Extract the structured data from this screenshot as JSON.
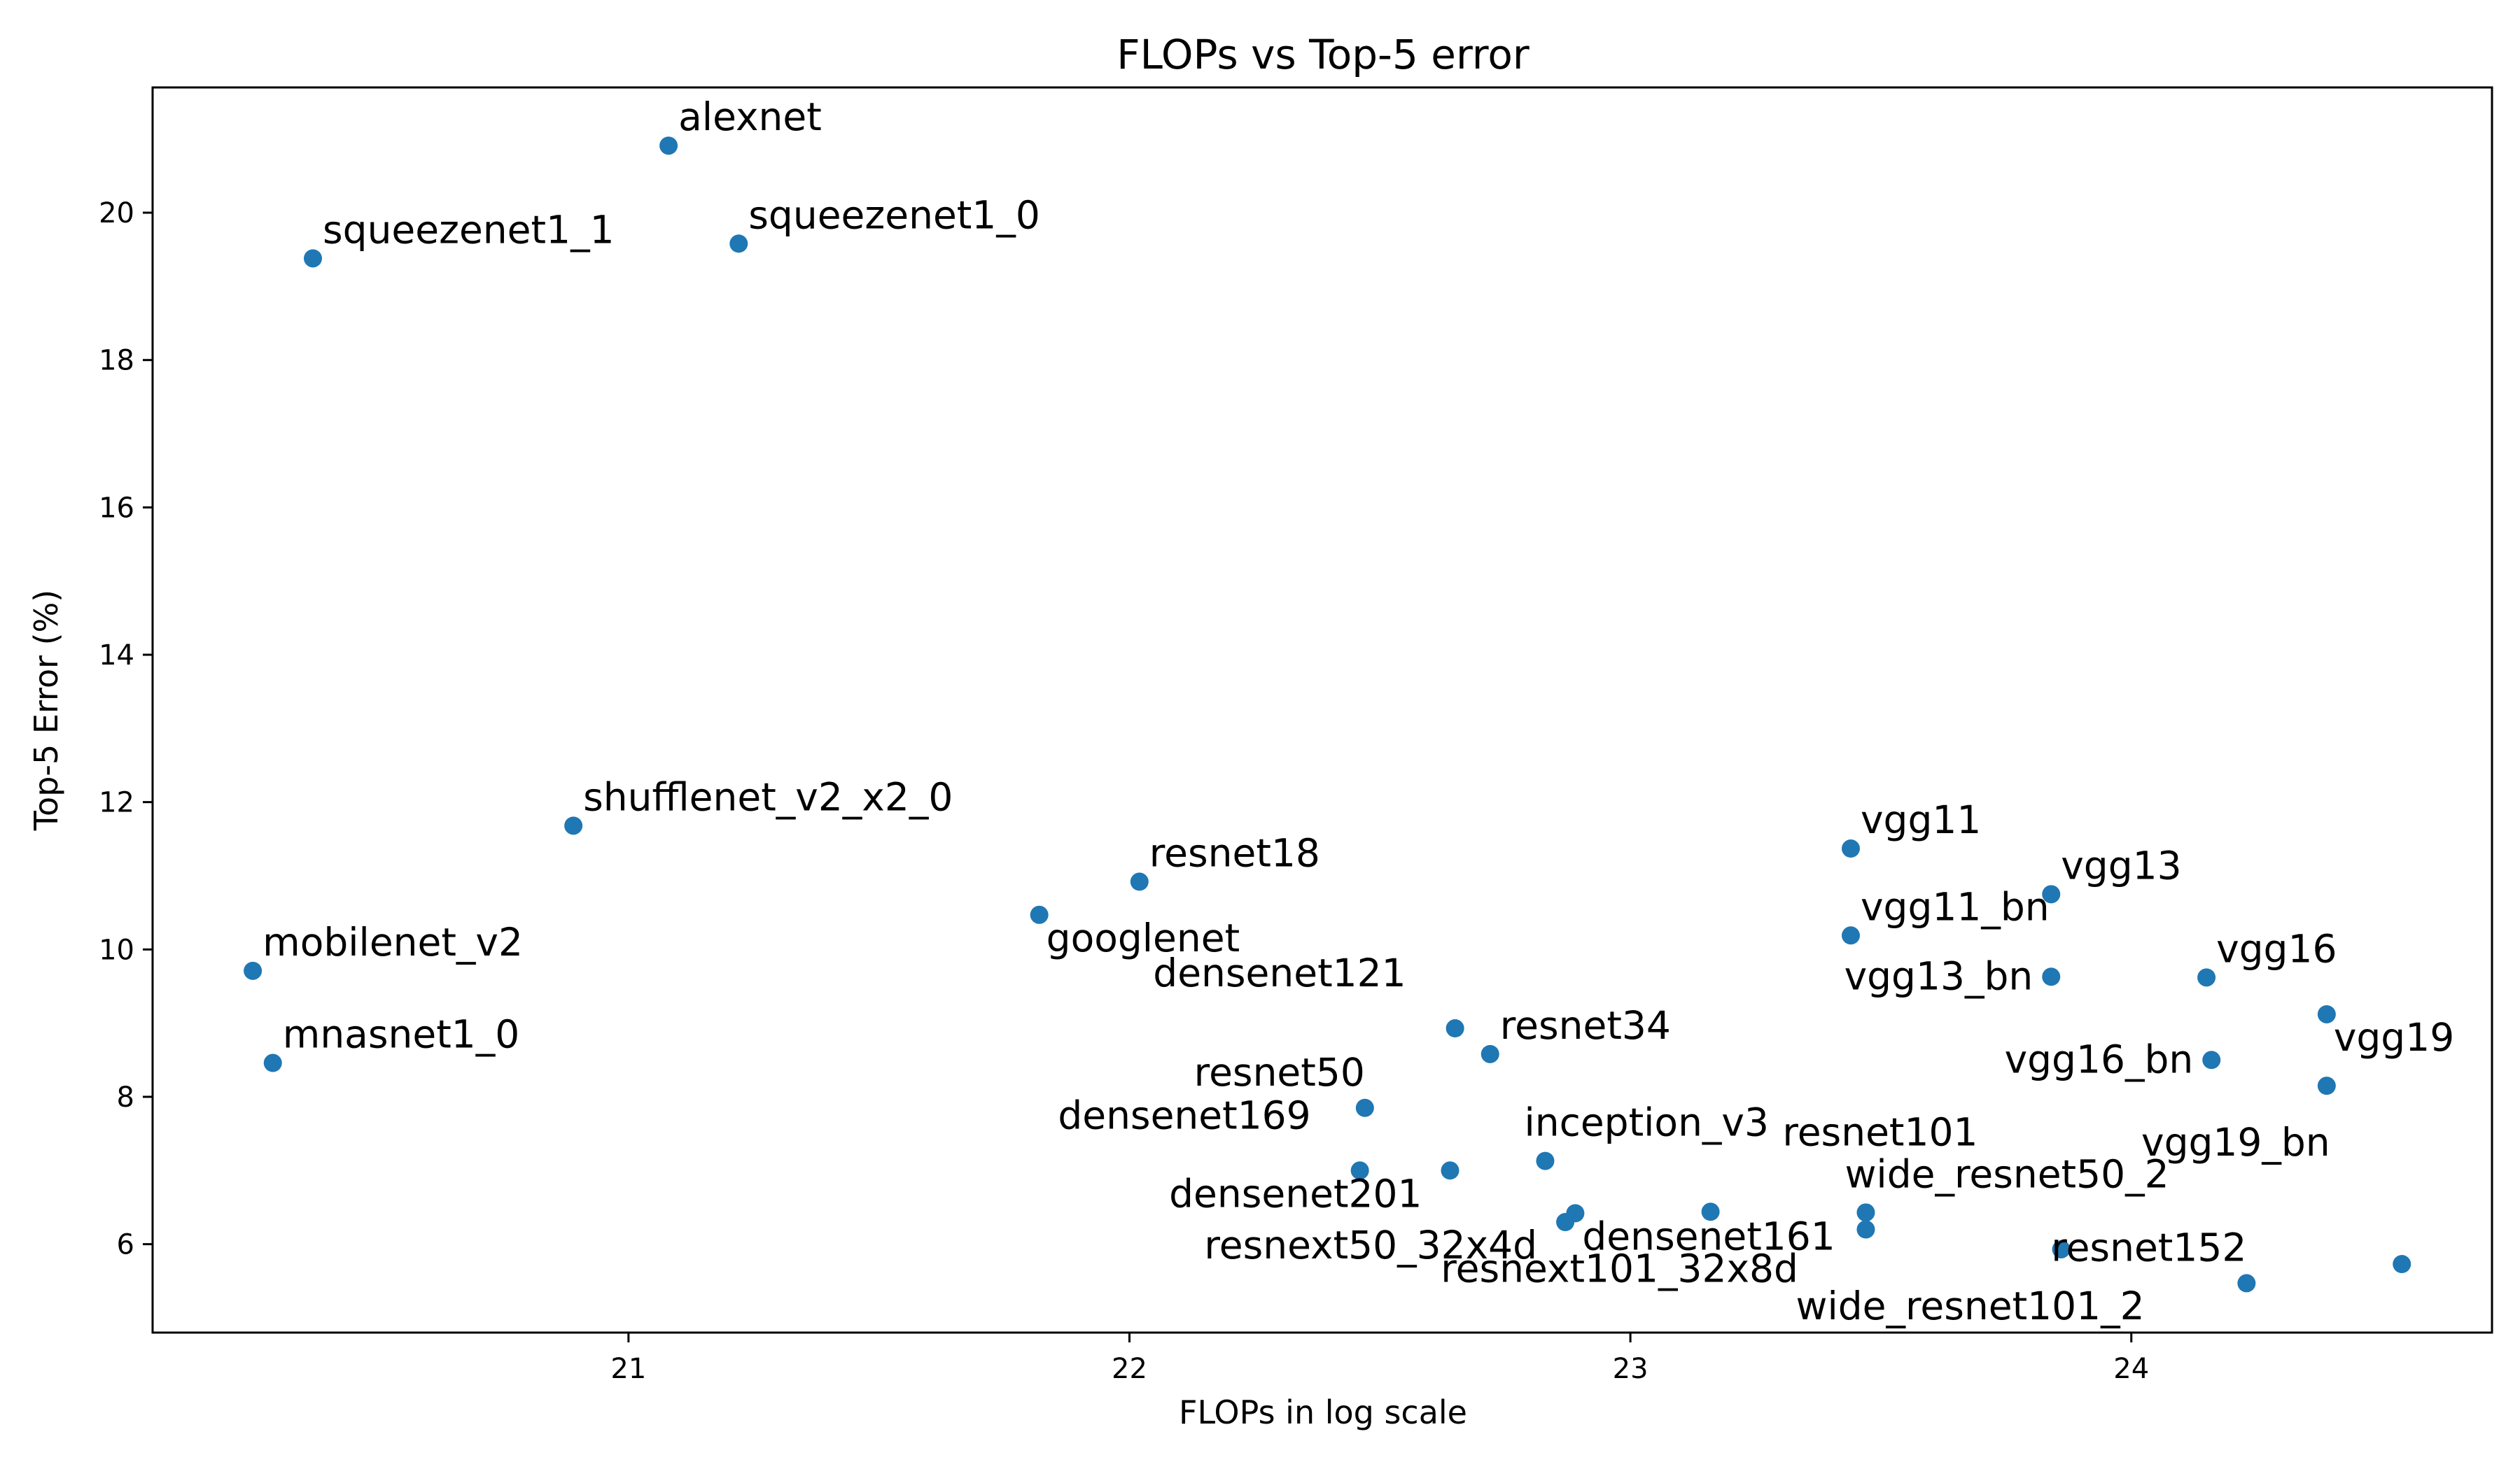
{
  "chart_data": {
    "type": "scatter",
    "title": "FLOPs vs Top-5 error",
    "xlabel": "FLOPs in log scale",
    "ylabel": "Top-5 Error (%)",
    "xlim": [
      20.05,
      24.72
    ],
    "ylim": [
      4.8,
      21.7
    ],
    "xticks": [
      21,
      22,
      23,
      24
    ],
    "yticks": [
      6,
      8,
      10,
      12,
      14,
      16,
      18,
      20
    ],
    "grid": false,
    "marker_color": "#1f77b4",
    "points": [
      {
        "name": "alexnet",
        "x": 21.08,
        "y": 20.91,
        "label_side": "right"
      },
      {
        "name": "squeezenet1_1",
        "x": 20.37,
        "y": 19.38,
        "label_side": "right"
      },
      {
        "name": "squeezenet1_0",
        "x": 21.22,
        "y": 19.58,
        "label_side": "right"
      },
      {
        "name": "shufflenet_v2_x2_0",
        "x": 20.89,
        "y": 11.68,
        "label_side": "right"
      },
      {
        "name": "mobilenet_v2",
        "x": 20.25,
        "y": 9.71,
        "label_side": "right"
      },
      {
        "name": "mnasnet1_0",
        "x": 20.29,
        "y": 8.46,
        "label_side": "right"
      },
      {
        "name": "resnet18",
        "x": 22.02,
        "y": 10.92,
        "label_side": "right"
      },
      {
        "name": "googlenet",
        "x": 21.82,
        "y": 10.47,
        "label_side": "right-below"
      },
      {
        "name": "densenet121",
        "x": 22.65,
        "y": 8.93,
        "label_side": "left-above"
      },
      {
        "name": "resnet34",
        "x": 22.72,
        "y": 8.58,
        "label_side": "right"
      },
      {
        "name": "resnet50",
        "x": 22.47,
        "y": 7.85,
        "label_side": "above"
      },
      {
        "name": "densenet169",
        "x": 22.46,
        "y": 7.0,
        "label_side": "left-above"
      },
      {
        "name": "inception_v3",
        "x": 22.83,
        "y": 7.13,
        "label_side": "right-above"
      },
      {
        "name": "densenet201",
        "x": 22.64,
        "y": 7.0,
        "label_side": "left-below"
      },
      {
        "name": "resnext50_32x4d",
        "x": 22.87,
        "y": 6.3,
        "label_side": "left-below"
      },
      {
        "name": "densenet161",
        "x": 22.89,
        "y": 6.42,
        "label_side": "right-below"
      },
      {
        "name": "resnext101_32x8d",
        "x": 23.16,
        "y": 6.44,
        "label_side": "below"
      },
      {
        "name": "vgg11",
        "x": 23.44,
        "y": 11.37,
        "label_side": "right"
      },
      {
        "name": "vgg11_bn",
        "x": 23.44,
        "y": 10.19,
        "label_side": "right"
      },
      {
        "name": "vgg13",
        "x": 23.84,
        "y": 10.75,
        "label_side": "right"
      },
      {
        "name": "vgg13_bn",
        "x": 23.84,
        "y": 9.63,
        "label_side": "left"
      },
      {
        "name": "wide_resnet50_2",
        "x": 23.47,
        "y": 6.43,
        "label_side": "right-above"
      },
      {
        "name": "resnet101",
        "x": 23.47,
        "y": 6.2,
        "label_side": "right-above-far"
      },
      {
        "name": "wide_resnet101_2",
        "x": 23.86,
        "y": 5.93,
        "label_side": "below"
      },
      {
        "name": "vgg16",
        "x": 24.15,
        "y": 9.62,
        "label_side": "right"
      },
      {
        "name": "vgg16_bn",
        "x": 24.16,
        "y": 8.5,
        "label_side": "left"
      },
      {
        "name": "vgg19",
        "x": 24.39,
        "y": 9.12,
        "label_side": "right-below"
      },
      {
        "name": "vgg19_bn",
        "x": 24.39,
        "y": 8.15,
        "label_side": "below"
      },
      {
        "name": "resnet152",
        "x": 24.23,
        "y": 5.47,
        "label_side": "above"
      },
      {
        "name": "resnet152_point2",
        "x": 24.54,
        "y": 5.73,
        "label_side": "none"
      }
    ]
  }
}
